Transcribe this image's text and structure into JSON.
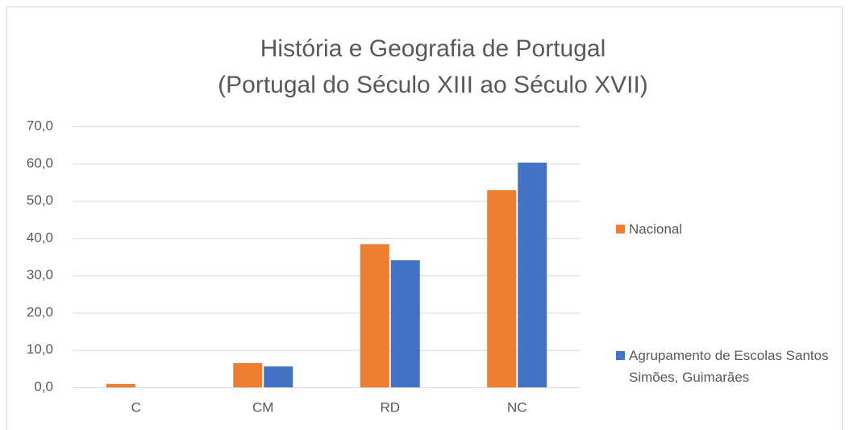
{
  "chart_data": {
    "type": "bar",
    "title": [
      "História e Geografia de Portugal",
      "(Portugal do Século XIII ao Século XVII)"
    ],
    "categories": [
      "C",
      "CM",
      "RD",
      "NC"
    ],
    "series": [
      {
        "name": "Nacional",
        "color": "#ed7d31",
        "values": [
          0.9,
          6.5,
          38.4,
          52.9
        ]
      },
      {
        "name": "Agrupamento de Escolas Santos Simões, Guimarães",
        "color": "#4472c4",
        "values": [
          0,
          5.6,
          34.1,
          60.3
        ]
      }
    ],
    "ylim": [
      0,
      70
    ],
    "yticks": [
      {
        "value": 0,
        "label": "0,0"
      },
      {
        "value": 10,
        "label": "10,0"
      },
      {
        "value": 20,
        "label": "20,0"
      },
      {
        "value": 30,
        "label": "30,0"
      },
      {
        "value": 40,
        "label": "40,0"
      },
      {
        "value": 50,
        "label": "50,0"
      },
      {
        "value": 60,
        "label": "60,0"
      },
      {
        "value": 70,
        "label": "70,0"
      }
    ],
    "grid": true,
    "legend": "right"
  }
}
